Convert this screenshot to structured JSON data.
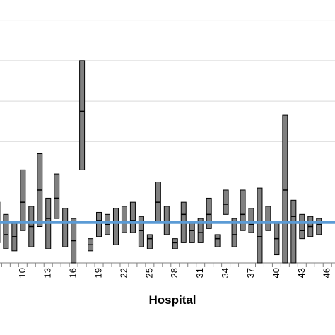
{
  "chart_data": {
    "type": "box",
    "xlabel": "Hospital",
    "ylabel": "",
    "title": "",
    "x_tick_labels": [
      "10",
      "13",
      "16",
      "19",
      "22",
      "25",
      "28",
      "31",
      "34",
      "37",
      "40",
      "43",
      "46"
    ],
    "x_tick_values": [
      10,
      13,
      16,
      19,
      22,
      25,
      28,
      31,
      34,
      37,
      40,
      43,
      46
    ],
    "xlim": [
      7.3,
      46.9
    ],
    "ylim": [
      0,
      6.5
    ],
    "grid": "horizontal",
    "reference_line": {
      "value": 1.0,
      "color": "#5b9bd5"
    },
    "box_color": "#808080",
    "hospitals": [
      {
        "x": 7,
        "low": 0.5,
        "median": 1.1,
        "high": 1.5
      },
      {
        "x": 8,
        "low": 0.35,
        "median": 0.7,
        "high": 1.2
      },
      {
        "x": 9,
        "low": 0.3,
        "median": 0.65,
        "high": 1.0
      },
      {
        "x": 10,
        "low": 0.8,
        "median": 1.5,
        "high": 2.3
      },
      {
        "x": 11,
        "low": 0.4,
        "median": 0.9,
        "high": 1.4
      },
      {
        "x": 12,
        "low": 0.9,
        "median": 1.8,
        "high": 2.7
      },
      {
        "x": 13,
        "low": 0.35,
        "median": 1.1,
        "high": 1.6
      },
      {
        "x": 14,
        "low": 1.1,
        "median": 1.6,
        "high": 2.2
      },
      {
        "x": 15,
        "low": 0.4,
        "median": 1.0,
        "high": 1.35
      },
      {
        "x": 16,
        "low": 0.0,
        "median": 0.55,
        "high": 1.1
      },
      {
        "x": 17,
        "low": 2.3,
        "median": 3.75,
        "high": 5.0
      },
      {
        "x": 18,
        "low": 0.3,
        "median": 0.45,
        "high": 0.6
      },
      {
        "x": 19,
        "low": 0.65,
        "median": 1.05,
        "high": 1.25
      },
      {
        "x": 20,
        "low": 0.7,
        "median": 0.95,
        "high": 1.2
      },
      {
        "x": 21,
        "low": 0.45,
        "median": 1.0,
        "high": 1.35
      },
      {
        "x": 22,
        "low": 0.75,
        "median": 1.0,
        "high": 1.4
      },
      {
        "x": 23,
        "low": 0.75,
        "median": 1.05,
        "high": 1.5
      },
      {
        "x": 24,
        "low": 0.4,
        "median": 0.8,
        "high": 1.15
      },
      {
        "x": 25,
        "low": 0.35,
        "median": 0.6,
        "high": 0.7
      },
      {
        "x": 26,
        "low": 1.0,
        "median": 1.5,
        "high": 2.0
      },
      {
        "x": 27,
        "low": 0.7,
        "median": 1.0,
        "high": 1.4
      },
      {
        "x": 28,
        "low": 0.35,
        "median": 0.5,
        "high": 0.6
      },
      {
        "x": 29,
        "low": 0.5,
        "median": 1.2,
        "high": 1.5
      },
      {
        "x": 30,
        "low": 0.5,
        "median": 0.8,
        "high": 1.0
      },
      {
        "x": 31,
        "low": 0.5,
        "median": 0.75,
        "high": 1.1
      },
      {
        "x": 32,
        "low": 0.85,
        "median": 1.2,
        "high": 1.6
      },
      {
        "x": 33,
        "low": 0.4,
        "median": 0.6,
        "high": 0.7
      },
      {
        "x": 34,
        "low": 1.2,
        "median": 1.45,
        "high": 1.8
      },
      {
        "x": 35,
        "low": 0.4,
        "median": 0.7,
        "high": 1.1
      },
      {
        "x": 36,
        "low": 0.8,
        "median": 1.2,
        "high": 1.8
      },
      {
        "x": 37,
        "low": 0.75,
        "median": 0.95,
        "high": 1.35
      },
      {
        "x": 38,
        "low": 0.0,
        "median": 0.65,
        "high": 1.85
      },
      {
        "x": 39,
        "low": 0.8,
        "median": 1.0,
        "high": 1.4
      },
      {
        "x": 40,
        "low": 0.2,
        "median": 0.6,
        "high": 1.0
      },
      {
        "x": 41,
        "low": 0.0,
        "median": 1.8,
        "high": 3.65
      },
      {
        "x": 42,
        "low": 0.0,
        "median": 1.15,
        "high": 1.55
      },
      {
        "x": 43,
        "low": 0.6,
        "median": 0.8,
        "high": 1.2
      },
      {
        "x": 44,
        "low": 0.65,
        "median": 0.9,
        "high": 1.15
      },
      {
        "x": 45,
        "low": 0.7,
        "median": 0.95,
        "high": 1.1
      }
    ]
  }
}
